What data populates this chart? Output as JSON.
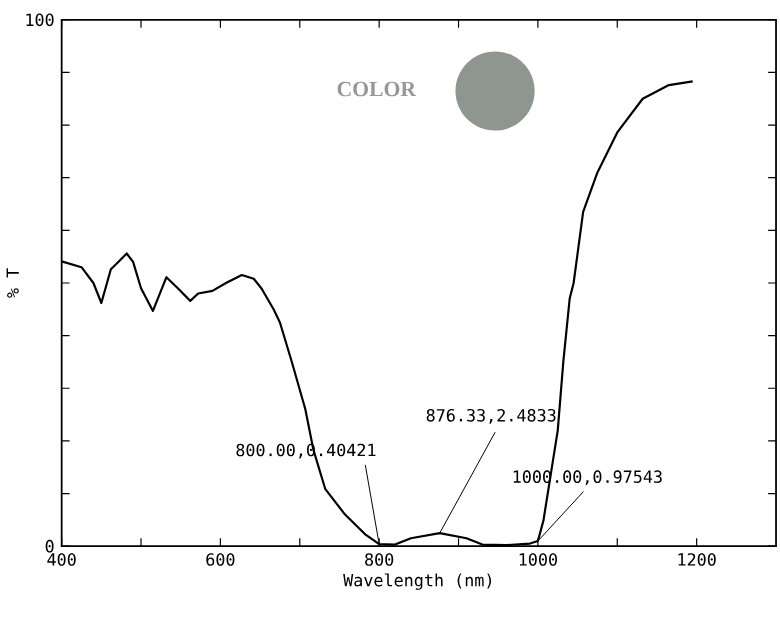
{
  "chart_data": {
    "type": "line",
    "xlabel": "Wavelength (nm)",
    "ylabel": "% T",
    "xlim": [
      400,
      1300
    ],
    "ylim": [
      0,
      100
    ],
    "xticks": [
      400,
      {
        "value": 500,
        "label": null
      },
      600,
      {
        "value": 700,
        "label": null
      },
      800,
      {
        "value": 900,
        "label": null
      },
      1000,
      {
        "value": 1100,
        "label": null
      },
      1200
    ],
    "yticks": [
      0,
      {
        "value": 10,
        "label": null
      },
      {
        "value": 20,
        "label": null
      },
      {
        "value": 30,
        "label": null
      },
      {
        "value": 40,
        "label": null
      },
      {
        "value": 50,
        "label": null
      },
      {
        "value": 60,
        "label": null
      },
      {
        "value": 70,
        "label": null
      },
      {
        "value": 80,
        "label": null
      },
      {
        "value": 90,
        "label": null
      },
      100
    ],
    "x": [
      400,
      425,
      440,
      450,
      462,
      472,
      482,
      490,
      500,
      515,
      532,
      547,
      562,
      572,
      590,
      607,
      627,
      642,
      652,
      667,
      675,
      690,
      707,
      717,
      732,
      757,
      782,
      800,
      820,
      840,
      876.33,
      910,
      930,
      960,
      990,
      1000,
      1007,
      1025,
      1032,
      1040,
      1045,
      1057,
      1075,
      1100,
      1132,
      1165,
      1195
    ],
    "values": [
      54.1,
      53,
      50,
      46.2,
      52.6,
      54.1,
      55.6,
      54,
      49,
      44.7,
      51.1,
      48.9,
      46.6,
      48,
      48.5,
      50,
      51.5,
      50.8,
      48.9,
      45,
      42.5,
      35,
      26,
      18.4,
      10.9,
      6,
      2.3,
      0.40421,
      0.3,
      1.5,
      2.4833,
      1.5,
      0.3,
      0.2,
      0.5,
      0.97543,
      4.9,
      22,
      35,
      47,
      50,
      63.5,
      71,
      78.6,
      85,
      87.6,
      88.3
    ],
    "color": "#000000",
    "annotations": [
      {
        "text": "800.00,0.40421",
        "x": 800,
        "y": 0.40421
      },
      {
        "text": "876.33,2.4833",
        "x": 876.33,
        "y": 2.4833
      },
      {
        "text": "1000.00,0.97543",
        "x": 1000,
        "y": 0.97543
      },
      "COLOR"
    ]
  }
}
